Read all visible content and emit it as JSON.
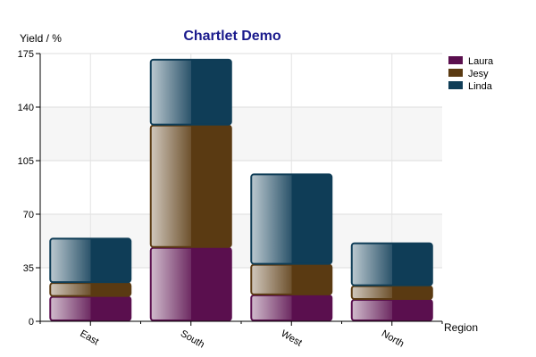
{
  "chart_data": {
    "type": "bar",
    "stacked": true,
    "title": "Chartlet Demo",
    "xlabel": "Region",
    "ylabel": "Yield / %",
    "categories": [
      "East",
      "South",
      "West",
      "North"
    ],
    "series": [
      {
        "name": "Laura",
        "values": [
          16,
          48,
          17,
          14
        ],
        "color": "#5a0f4e"
      },
      {
        "name": "Jesy",
        "values": [
          9,
          80,
          20,
          9
        ],
        "color": "#5a3a12"
      },
      {
        "name": "Linda",
        "values": [
          29,
          43,
          59,
          28
        ],
        "color": "#0f3d57"
      }
    ],
    "ylim": [
      0,
      175
    ],
    "yticks": [
      "0",
      "35",
      "70",
      "105",
      "140",
      "175"
    ],
    "grid": true,
    "legend_position": "top-right"
  }
}
